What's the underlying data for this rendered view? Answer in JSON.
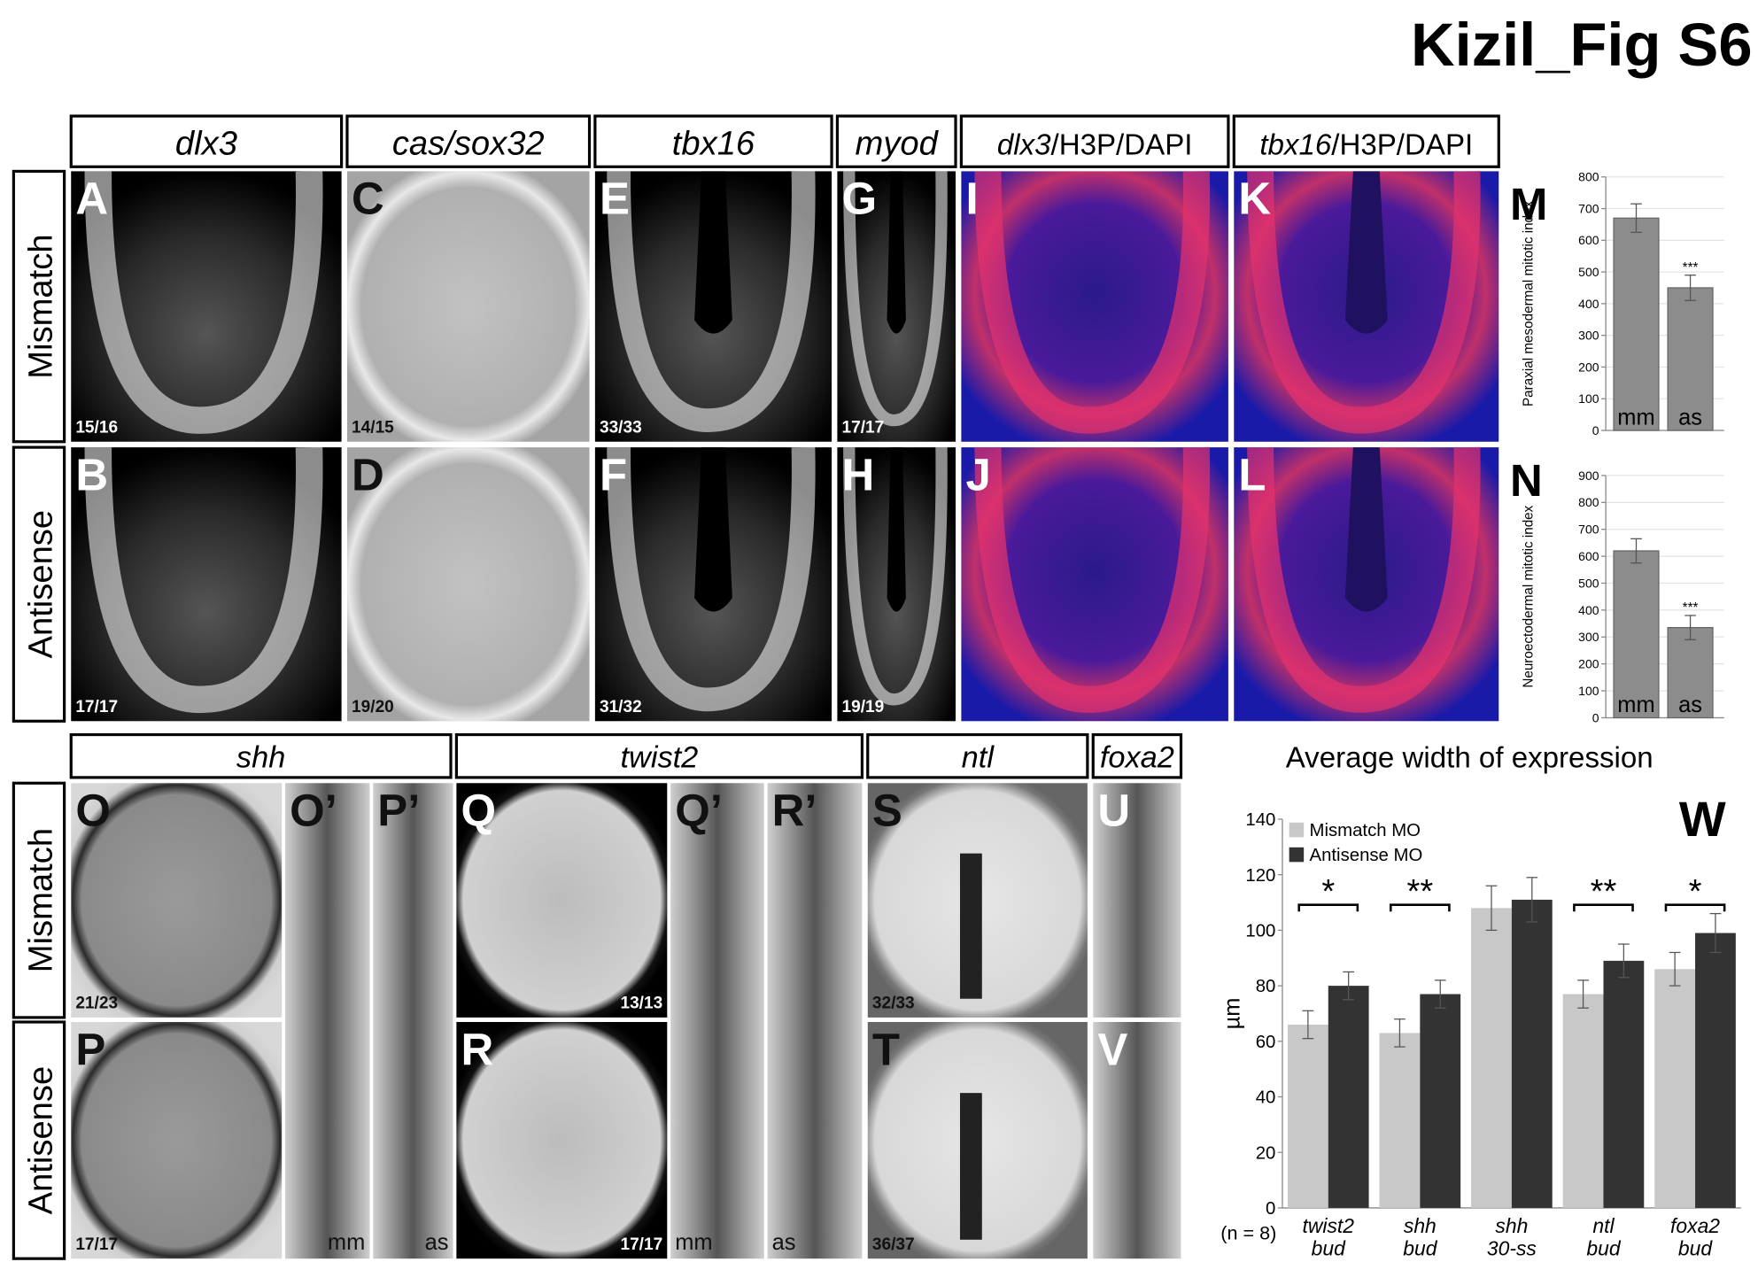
{
  "figure_title": "Kizil_Fig S6",
  "row_labels": [
    "Mismatch",
    "Antisense"
  ],
  "headers_top": [
    "dlx3",
    "cas/sox32",
    "tbx16",
    "myod",
    "dlx3/H3P/DAPI",
    "tbx16/H3P/DAPI"
  ],
  "headers_bottom": [
    "shh",
    "twist2",
    "ntl",
    "foxa2"
  ],
  "panels": [
    {
      "label": "A",
      "count": "15/16"
    },
    {
      "label": "B",
      "count": "17/17"
    },
    {
      "label": "C",
      "count": "14/15"
    },
    {
      "label": "D",
      "count": "19/20"
    },
    {
      "label": "E",
      "count": "33/33"
    },
    {
      "label": "F",
      "count": "31/32"
    },
    {
      "label": "G",
      "count": "17/17"
    },
    {
      "label": "H",
      "count": "19/19"
    },
    {
      "label": "I"
    },
    {
      "label": "J"
    },
    {
      "label": "K"
    },
    {
      "label": "L"
    },
    {
      "label": "O",
      "count": "21/23"
    },
    {
      "label": "O’",
      "count": "mm"
    },
    {
      "label": "P’",
      "count": "as"
    },
    {
      "label": "P",
      "count": "17/17"
    },
    {
      "label": "Q",
      "count": "13/13"
    },
    {
      "label": "Q’",
      "count": "mm"
    },
    {
      "label": "R’",
      "count": "as"
    },
    {
      "label": "R",
      "count": "17/17"
    },
    {
      "label": "S",
      "count": "32/33"
    },
    {
      "label": "T",
      "count": "36/37"
    },
    {
      "label": "U"
    },
    {
      "label": "V"
    }
  ],
  "chart_data": [
    {
      "type": "bar",
      "panel": "M",
      "ylabel": "Paraxial mesodermal mitotic index",
      "categories": [
        "mm",
        "as"
      ],
      "values": [
        670,
        450
      ],
      "errors": [
        45,
        40
      ],
      "color": "#8c8c8c",
      "ylim": [
        0,
        800
      ],
      "yticks": [
        0,
        100,
        200,
        300,
        400,
        500,
        600,
        700,
        800
      ],
      "grid": true,
      "annotations": [
        {
          "category": 1,
          "label": "***"
        }
      ]
    },
    {
      "type": "bar",
      "panel": "N",
      "ylabel": "Neuroectodermal mitotic index",
      "categories": [
        "mm",
        "as"
      ],
      "values": [
        620,
        335
      ],
      "errors": [
        45,
        45
      ],
      "color": "#8c8c8c",
      "ylim": [
        0,
        900
      ],
      "yticks": [
        0,
        100,
        200,
        300,
        400,
        500,
        600,
        700,
        800,
        900
      ],
      "grid": true,
      "annotations": [
        {
          "category": 1,
          "label": "***"
        }
      ]
    },
    {
      "type": "grouped_bar",
      "panel": "W",
      "title": "Average width of expression",
      "ylabel": "µm",
      "note": "(n = 8)",
      "categories": [
        "twist2 bud",
        "shh bud",
        "shh 30-ss",
        "ntl bud",
        "foxa2 bud"
      ],
      "series": [
        {
          "name": "Mismatch MO",
          "color": "#c8c8c8",
          "values": [
            66,
            63,
            108,
            77,
            86
          ],
          "errors": [
            5,
            5,
            8,
            5,
            6
          ]
        },
        {
          "name": "Antisense MO",
          "color": "#333333",
          "values": [
            80,
            77,
            111,
            89,
            99
          ],
          "errors": [
            5,
            5,
            8,
            6,
            7
          ]
        }
      ],
      "ylim": [
        0,
        140
      ],
      "yticks": [
        0,
        20,
        40,
        60,
        80,
        100,
        120,
        140
      ],
      "legend": "upper left",
      "annotations": [
        {
          "category": 0,
          "label": "*"
        },
        {
          "category": 1,
          "label": "**"
        },
        {
          "category": 3,
          "label": "**"
        },
        {
          "category": 4,
          "label": "*"
        }
      ]
    }
  ]
}
